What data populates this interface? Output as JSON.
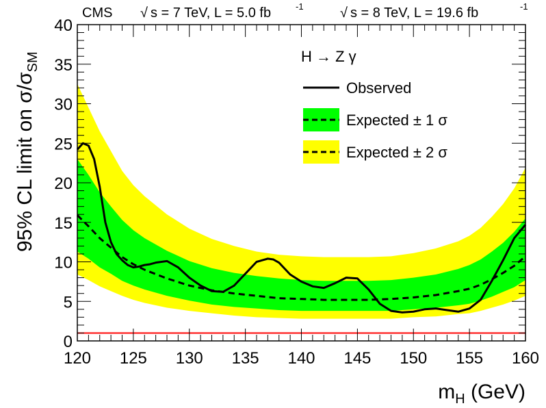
{
  "chart_data": {
    "type": "line",
    "header": {
      "experiment": "CMS",
      "lumi_7_energy": "s = 7 TeV, L = 5.0 fb",
      "lumi_7_sup": "-1",
      "lumi_8_energy": "s = 8 TeV, L = 19.6 fb",
      "lumi_8_sup": "-1"
    },
    "title": "H → Z γ",
    "ylabel": "95% CL limit on σ/σ",
    "ylabel_sub": "SM",
    "xlabel_main": "m",
    "xlabel_sub": "H",
    "xlabel_unit": " (GeV)",
    "xlim": [
      120,
      160
    ],
    "ylim": [
      0,
      40
    ],
    "x_ticks": [
      120,
      125,
      130,
      135,
      140,
      145,
      150,
      155,
      160
    ],
    "y_ticks": [
      0,
      5,
      10,
      15,
      20,
      25,
      30,
      35,
      40
    ],
    "legend_position": "top-right",
    "legend": {
      "observed": "Observed",
      "exp1": "Expected ± 1 σ",
      "exp2": "Expected ± 2 σ"
    },
    "colors": {
      "observed": "#000000",
      "expected": "#000000",
      "band1": "#00ff00",
      "band2": "#ffff00",
      "sm_line": "#ff0000"
    },
    "sm_reference": 1,
    "x": [
      120,
      121,
      122,
      123,
      124,
      125,
      126,
      128,
      130,
      132,
      134,
      136,
      138,
      140,
      142,
      144,
      146,
      148,
      150,
      152,
      154,
      155,
      156,
      157,
      158,
      159,
      160
    ],
    "expected": [
      15.9,
      14.5,
      13.0,
      11.8,
      10.6,
      9.7,
      9.0,
      7.9,
      7.0,
      6.4,
      6.0,
      5.7,
      5.4,
      5.3,
      5.2,
      5.2,
      5.2,
      5.3,
      5.5,
      5.8,
      6.3,
      6.6,
      7.1,
      7.8,
      8.6,
      9.5,
      10.7
    ],
    "band1_low": [
      11.3,
      10.4,
      9.3,
      8.5,
      7.6,
      7.0,
      6.5,
      5.7,
      5.1,
      4.6,
      4.3,
      4.1,
      3.9,
      3.8,
      3.8,
      3.8,
      3.8,
      3.8,
      4.0,
      4.2,
      4.5,
      4.7,
      5.1,
      5.6,
      6.2,
      6.8,
      7.7
    ],
    "band1_high": [
      23.0,
      21.0,
      18.8,
      17.0,
      15.3,
      14.0,
      13.0,
      11.4,
      10.1,
      9.2,
      8.6,
      8.2,
      7.9,
      7.7,
      7.6,
      7.6,
      7.6,
      7.7,
      8.0,
      8.4,
      9.1,
      9.6,
      10.3,
      11.3,
      12.4,
      13.8,
      15.5
    ],
    "band2_low": [
      8.4,
      7.7,
      6.9,
      6.3,
      5.7,
      5.2,
      4.8,
      4.2,
      3.8,
      3.5,
      3.2,
      3.0,
      2.9,
      2.8,
      2.8,
      2.8,
      2.8,
      2.8,
      3.0,
      3.1,
      3.4,
      3.5,
      3.8,
      4.2,
      4.6,
      5.1,
      5.7
    ],
    "band2_high": [
      32.5,
      29.5,
      26.5,
      24.0,
      21.5,
      19.7,
      18.3,
      16.0,
      14.2,
      12.9,
      12.0,
      11.3,
      10.9,
      10.7,
      10.6,
      10.6,
      10.6,
      10.7,
      11.1,
      11.7,
      12.6,
      13.3,
      14.3,
      15.7,
      17.3,
      19.3,
      21.9
    ],
    "observed_x": [
      120,
      120.5,
      121,
      121.5,
      122,
      122.5,
      123,
      123.5,
      124,
      124.5,
      125,
      125.5,
      126,
      126.5,
      127,
      128,
      129,
      130,
      131,
      132,
      133,
      134,
      135,
      136,
      137,
      137.5,
      138,
      139,
      140,
      141,
      142,
      143,
      144,
      145,
      146,
      147,
      148,
      149,
      150,
      151,
      152,
      153,
      154,
      155,
      156,
      157,
      158,
      159,
      160
    ],
    "observed": [
      24.2,
      25.0,
      24.7,
      23.0,
      19.5,
      15.0,
      12.5,
      11.0,
      10.2,
      9.6,
      9.3,
      9.4,
      9.6,
      9.7,
      9.9,
      10.1,
      9.3,
      8.0,
      7.0,
      6.3,
      6.2,
      7.0,
      8.5,
      10.0,
      10.4,
      10.3,
      9.9,
      8.4,
      7.5,
      6.9,
      6.7,
      7.3,
      8.0,
      7.9,
      6.5,
      4.7,
      3.8,
      3.6,
      3.7,
      4.0,
      4.1,
      3.9,
      3.7,
      4.1,
      5.2,
      7.6,
      10.2,
      13.0,
      14.7
    ]
  }
}
